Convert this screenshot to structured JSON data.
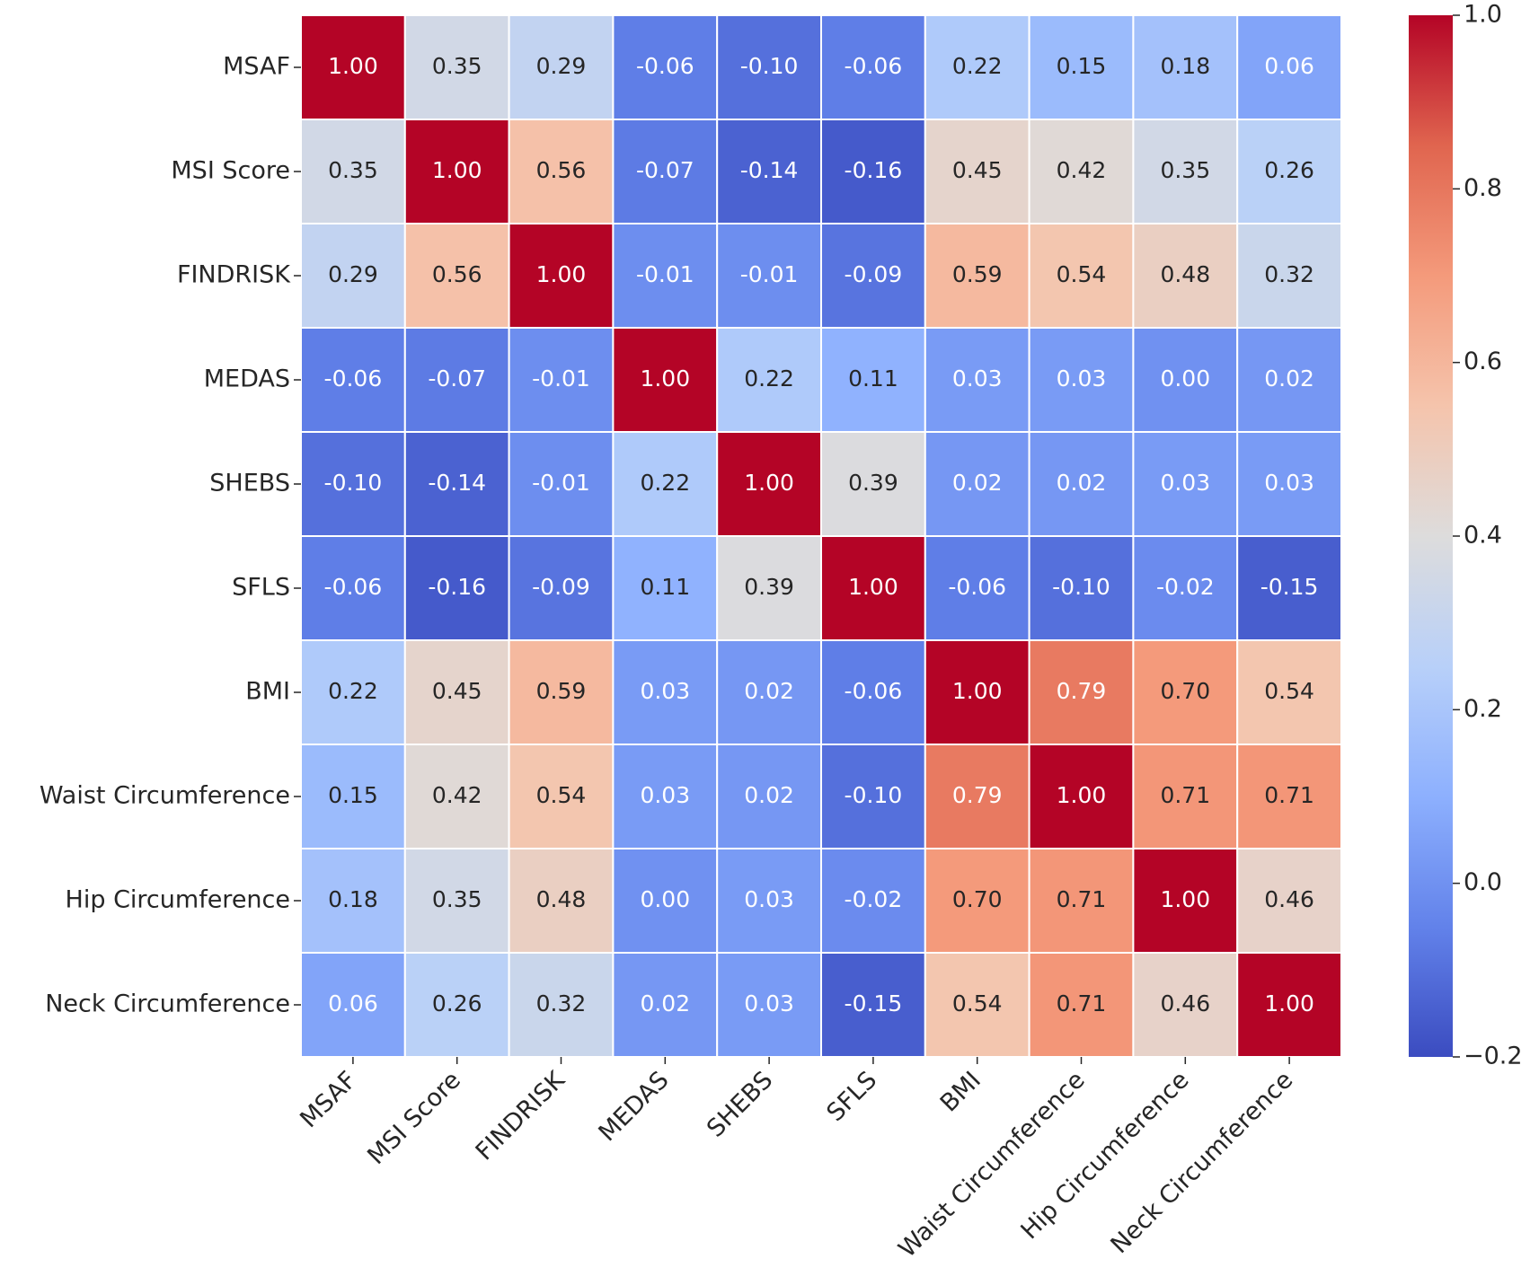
{
  "chart_data": {
    "type": "heatmap",
    "x": [
      "MSAF",
      "MSI Score",
      "FINDRISK",
      "MEDAS",
      "SHEBS",
      "SFLS",
      "BMI",
      "Waist Circumference",
      "Hip Circumference",
      "Neck Circumference"
    ],
    "y": [
      "MSAF",
      "MSI Score",
      "FINDRISK",
      "MEDAS",
      "SHEBS",
      "SFLS",
      "BMI",
      "Waist Circumference",
      "Hip Circumference",
      "Neck Circumference"
    ],
    "values": [
      [
        1.0,
        0.35,
        0.29,
        -0.06,
        -0.1,
        -0.06,
        0.22,
        0.15,
        0.18,
        0.06
      ],
      [
        0.35,
        1.0,
        0.56,
        -0.07,
        -0.14,
        -0.16,
        0.45,
        0.42,
        0.35,
        0.26
      ],
      [
        0.29,
        0.56,
        1.0,
        -0.01,
        -0.01,
        -0.09,
        0.59,
        0.54,
        0.48,
        0.32
      ],
      [
        -0.06,
        -0.07,
        -0.01,
        1.0,
        0.22,
        0.11,
        0.03,
        0.03,
        0.0,
        0.02
      ],
      [
        -0.1,
        -0.14,
        -0.01,
        0.22,
        1.0,
        0.39,
        0.02,
        0.02,
        0.03,
        0.03
      ],
      [
        -0.06,
        -0.16,
        -0.09,
        0.11,
        0.39,
        1.0,
        -0.06,
        -0.1,
        -0.02,
        -0.15
      ],
      [
        0.22,
        0.45,
        0.59,
        0.03,
        0.02,
        -0.06,
        1.0,
        0.79,
        0.7,
        0.54
      ],
      [
        0.15,
        0.42,
        0.54,
        0.03,
        0.02,
        -0.1,
        0.79,
        1.0,
        0.71,
        0.71
      ],
      [
        0.18,
        0.35,
        0.48,
        0.0,
        0.03,
        -0.02,
        0.7,
        0.71,
        1.0,
        0.46
      ],
      [
        0.06,
        0.26,
        0.32,
        0.02,
        0.03,
        -0.15,
        0.54,
        0.71,
        0.46,
        1.0
      ]
    ],
    "value_labels": [
      [
        "1.00",
        "0.35",
        "0.29",
        "-0.06",
        "-0.10",
        "-0.06",
        "0.22",
        "0.15",
        "0.18",
        "0.06"
      ],
      [
        "0.35",
        "1.00",
        "0.56",
        "-0.07",
        "-0.14",
        "-0.16",
        "0.45",
        "0.42",
        "0.35",
        "0.26"
      ],
      [
        "0.29",
        "0.56",
        "1.00",
        "-0.01",
        "-0.01",
        "-0.09",
        "0.59",
        "0.54",
        "0.48",
        "0.32"
      ],
      [
        "-0.06",
        "-0.07",
        "-0.01",
        "1.00",
        "0.22",
        "0.11",
        "0.03",
        "0.03",
        "0.00",
        "0.02"
      ],
      [
        "-0.10",
        "-0.14",
        "-0.01",
        "0.22",
        "1.00",
        "0.39",
        "0.02",
        "0.02",
        "0.03",
        "0.03"
      ],
      [
        "-0.06",
        "-0.16",
        "-0.09",
        "0.11",
        "0.39",
        "1.00",
        "-0.06",
        "-0.10",
        "-0.02",
        "-0.15"
      ],
      [
        "0.22",
        "0.45",
        "0.59",
        "0.03",
        "0.02",
        "-0.06",
        "1.00",
        "0.79",
        "0.70",
        "0.54"
      ],
      [
        "0.15",
        "0.42",
        "0.54",
        "0.03",
        "0.02",
        "-0.10",
        "0.79",
        "1.00",
        "0.71",
        "0.71"
      ],
      [
        "0.18",
        "0.35",
        "0.48",
        "0.00",
        "0.03",
        "-0.02",
        "0.70",
        "0.71",
        "1.00",
        "0.46"
      ],
      [
        "0.06",
        "0.26",
        "0.32",
        "0.02",
        "0.03",
        "-0.15",
        "0.54",
        "0.71",
        "0.46",
        "1.00"
      ]
    ],
    "colormap": "coolwarm",
    "zlim": [
      -0.2,
      1.0
    ],
    "zticks": [
      {
        "value": 1.0,
        "label": "1.0"
      },
      0.8,
      0.6,
      0.4,
      0.2,
      {
        "value": 0.0,
        "label": "0.0"
      },
      {
        "value": -0.2,
        "label": "−0.2"
      }
    ]
  }
}
